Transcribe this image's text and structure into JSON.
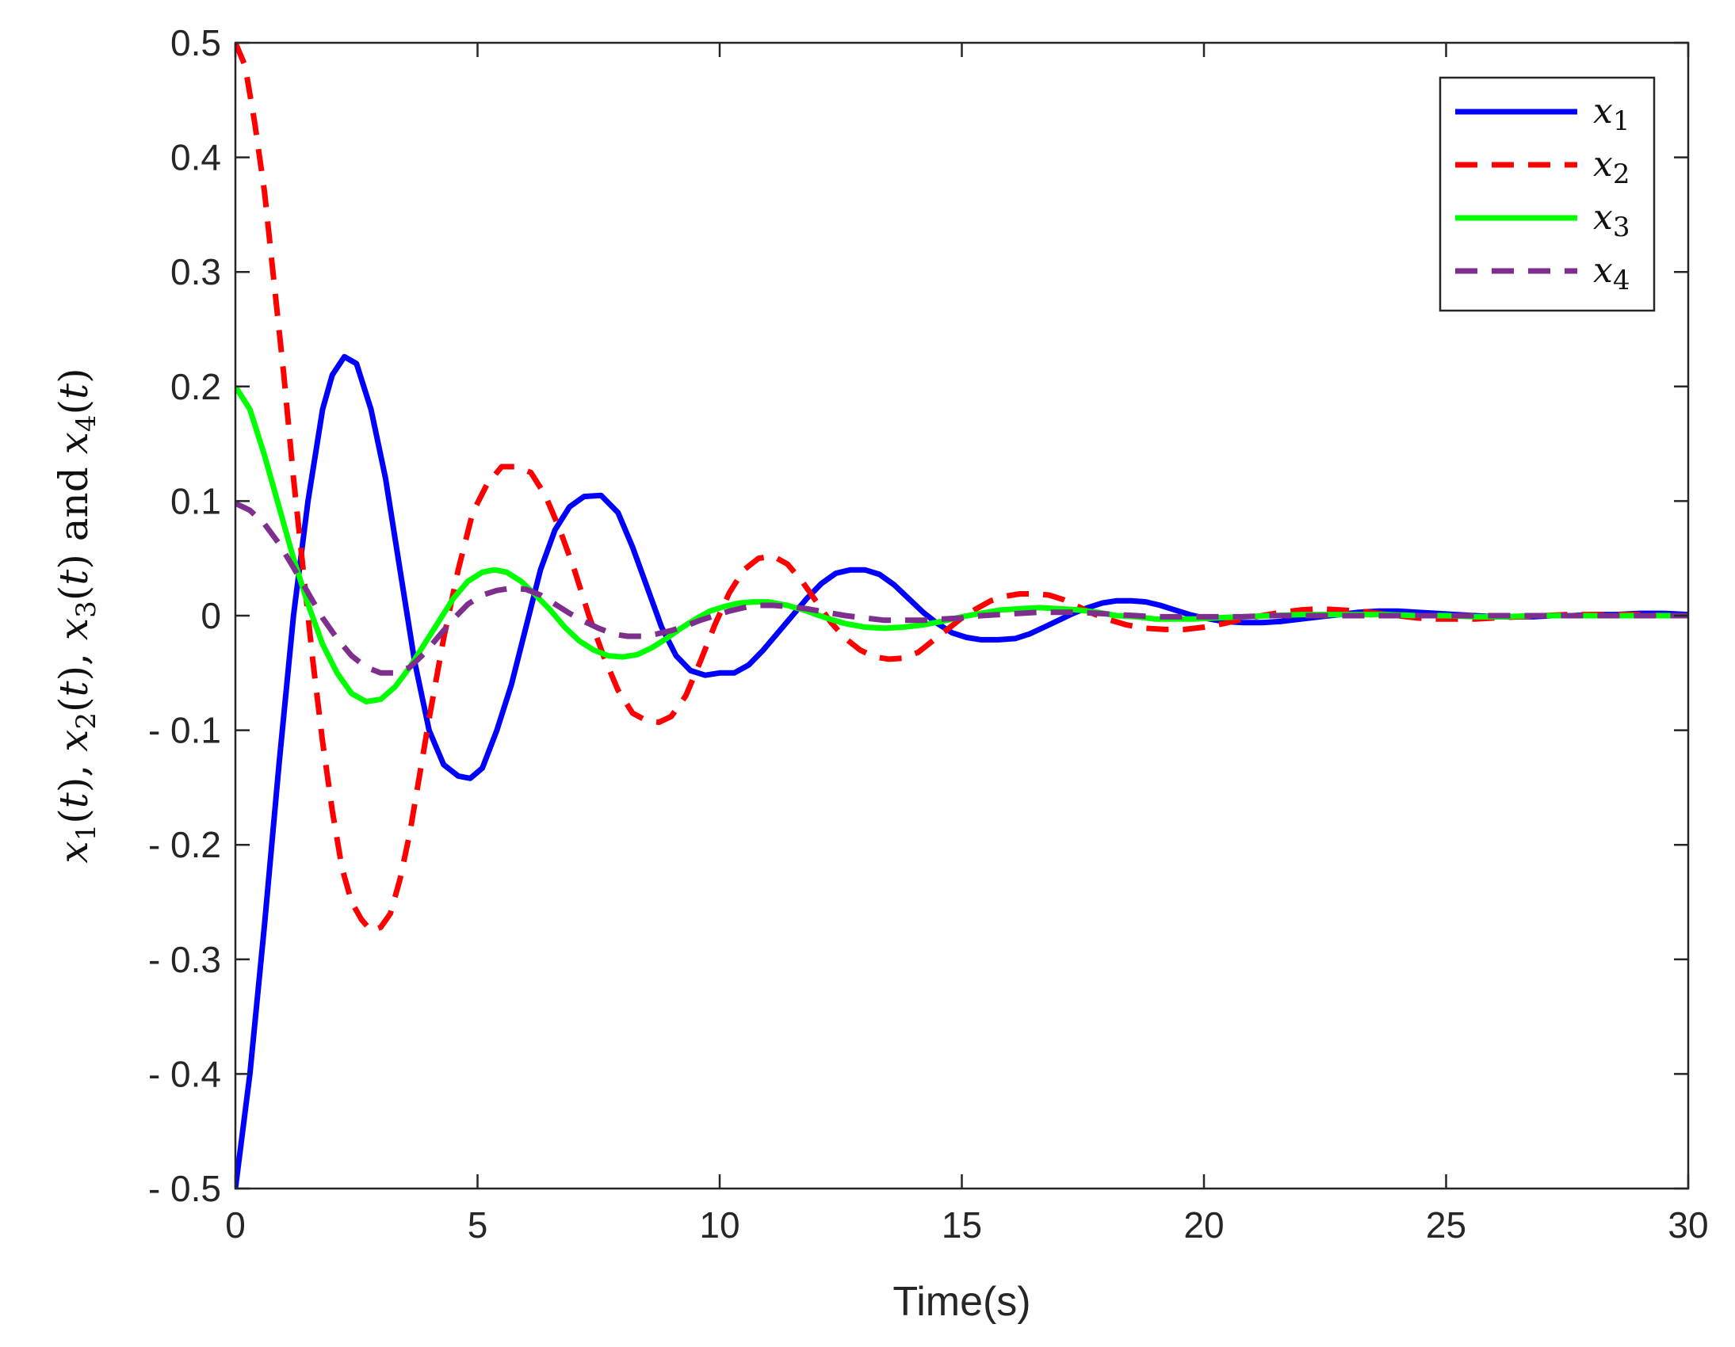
{
  "chart_data": {
    "type": "line",
    "title": "",
    "xlabel": "Time(s)",
    "ylabel": "x1(t), x2(t), x3(t) and x4(t)",
    "ylabel_parts": [
      "x",
      "1",
      "(",
      "t",
      "), ",
      "x",
      "2",
      "(",
      "t",
      "), ",
      "x",
      "3",
      "(",
      "t",
      ") and ",
      "x",
      "4",
      "(",
      "t",
      ")"
    ],
    "xlim": [
      0,
      30
    ],
    "ylim": [
      -0.5,
      0.5
    ],
    "xticks": [
      0,
      5,
      10,
      15,
      20,
      25,
      30
    ],
    "xtick_labels": [
      "0",
      "5",
      "10",
      "15",
      "20",
      "25",
      "30"
    ],
    "yticks": [
      0.5,
      0.4,
      0.3,
      0.2,
      0.1,
      0,
      -0.1,
      -0.2,
      -0.3,
      -0.4,
      -0.5
    ],
    "ytick_labels": [
      "0.5",
      "0.4",
      "0.3",
      "0.2",
      "0.1",
      "0",
      "- 0.1",
      "- 0.2",
      "- 0.3",
      "- 0.4",
      "- 0.5"
    ],
    "grid": false,
    "legend_position": "top-right",
    "series": [
      {
        "name": "x1",
        "label_base": "x",
        "label_sub": "1",
        "color": "#0000ff",
        "dash": "solid",
        "x": [
          0,
          0.3,
          0.6,
          0.9,
          1.2,
          1.5,
          1.8,
          2.0,
          2.25,
          2.5,
          2.8,
          3.1,
          3.4,
          3.7,
          4.0,
          4.3,
          4.6,
          4.85,
          5.1,
          5.4,
          5.7,
          6.0,
          6.3,
          6.6,
          6.9,
          7.2,
          7.55,
          7.9,
          8.2,
          8.5,
          8.8,
          9.1,
          9.4,
          9.7,
          10.0,
          10.3,
          10.6,
          10.9,
          11.2,
          11.5,
          11.8,
          12.1,
          12.4,
          12.7,
          13.0,
          13.3,
          13.6,
          13.9,
          14.2,
          14.5,
          14.8,
          15.1,
          15.4,
          15.75,
          16.1,
          16.4,
          16.7,
          17.0,
          17.3,
          17.6,
          17.9,
          18.2,
          18.5,
          18.8,
          19.1,
          19.4,
          19.7,
          20.0,
          20.4,
          20.8,
          21.2,
          21.6,
          22.0,
          22.4,
          22.8,
          23.2,
          23.6,
          24.0,
          24.4,
          24.8,
          25.2,
          25.6,
          26.0,
          26.4,
          26.8,
          27.2,
          27.6,
          28.0,
          28.5,
          29.0,
          29.5,
          30.0
        ],
        "y": [
          -0.5,
          -0.4,
          -0.27,
          -0.13,
          0.0,
          0.1,
          0.18,
          0.21,
          0.226,
          0.22,
          0.18,
          0.12,
          0.04,
          -0.04,
          -0.1,
          -0.13,
          -0.14,
          -0.142,
          -0.133,
          -0.1,
          -0.06,
          -0.01,
          0.04,
          0.075,
          0.095,
          0.104,
          0.105,
          0.09,
          0.06,
          0.025,
          -0.01,
          -0.035,
          -0.048,
          -0.052,
          -0.05,
          -0.05,
          -0.043,
          -0.03,
          -0.015,
          0.0,
          0.015,
          0.028,
          0.037,
          0.04,
          0.04,
          0.036,
          0.027,
          0.015,
          0.003,
          -0.007,
          -0.015,
          -0.019,
          -0.021,
          -0.021,
          -0.02,
          -0.016,
          -0.01,
          -0.004,
          0.002,
          0.007,
          0.011,
          0.013,
          0.013,
          0.012,
          0.009,
          0.005,
          0.001,
          -0.002,
          -0.005,
          -0.006,
          -0.006,
          -0.005,
          -0.003,
          -0.001,
          0.001,
          0.003,
          0.004,
          0.004,
          0.003,
          0.002,
          0.001,
          0.0,
          -0.001,
          -0.001,
          -0.001,
          0.0,
          0.0,
          0.001,
          0.001,
          0.002,
          0.002,
          0.001
        ]
      },
      {
        "name": "x2",
        "label_base": "x",
        "label_sub": "2",
        "color": "#ff0000",
        "dash": "dashed",
        "x": [
          0,
          0.2,
          0.4,
          0.6,
          0.8,
          1.0,
          1.2,
          1.4,
          1.6,
          1.8,
          2.0,
          2.2,
          2.4,
          2.6,
          2.8,
          3.0,
          3.2,
          3.4,
          3.6,
          3.8,
          4.0,
          4.3,
          4.6,
          4.9,
          5.2,
          5.5,
          5.8,
          6.1,
          6.4,
          6.7,
          7.0,
          7.3,
          7.6,
          7.9,
          8.2,
          8.5,
          8.75,
          9.0,
          9.3,
          9.6,
          9.9,
          10.2,
          10.5,
          10.8,
          11.1,
          11.4,
          11.7,
          12.0,
          12.3,
          12.6,
          12.9,
          13.2,
          13.5,
          13.8,
          14.1,
          14.4,
          14.7,
          15.0,
          15.3,
          15.6,
          15.9,
          16.2,
          16.5,
          16.8,
          17.1,
          17.4,
          17.7,
          18.0,
          18.4,
          18.8,
          19.2,
          19.6,
          20.0,
          20.4,
          20.8,
          21.2,
          21.6,
          22.0,
          22.4,
          22.8,
          23.2,
          23.6,
          24.0,
          24.4,
          24.8,
          25.2,
          25.6,
          26.0,
          26.5,
          27.0,
          27.5,
          28.0,
          28.5,
          29.0,
          29.5,
          30.0
        ],
        "y": [
          0.5,
          0.48,
          0.43,
          0.37,
          0.29,
          0.21,
          0.12,
          0.04,
          -0.04,
          -0.11,
          -0.17,
          -0.22,
          -0.25,
          -0.265,
          -0.275,
          -0.272,
          -0.26,
          -0.23,
          -0.19,
          -0.14,
          -0.09,
          -0.02,
          0.04,
          0.09,
          0.115,
          0.13,
          0.13,
          0.125,
          0.105,
          0.075,
          0.04,
          0.0,
          -0.035,
          -0.065,
          -0.085,
          -0.092,
          -0.093,
          -0.088,
          -0.07,
          -0.04,
          -0.008,
          0.02,
          0.04,
          0.05,
          0.052,
          0.045,
          0.03,
          0.012,
          -0.006,
          -0.02,
          -0.03,
          -0.036,
          -0.038,
          -0.037,
          -0.032,
          -0.022,
          -0.012,
          -0.002,
          0.006,
          0.013,
          0.017,
          0.019,
          0.019,
          0.018,
          0.014,
          0.008,
          0.002,
          -0.003,
          -0.008,
          -0.011,
          -0.012,
          -0.012,
          -0.01,
          -0.007,
          -0.003,
          0.0,
          0.003,
          0.005,
          0.006,
          0.005,
          0.004,
          0.002,
          0.0,
          -0.002,
          -0.003,
          -0.003,
          -0.003,
          -0.002,
          -0.001,
          0.0,
          0.001,
          0.001,
          0.001,
          0.001,
          0.0,
          0.0
        ]
      },
      {
        "name": "x3",
        "label_base": "x",
        "label_sub": "3",
        "color": "#00ff00",
        "dash": "solid",
        "x": [
          0,
          0.3,
          0.6,
          0.9,
          1.2,
          1.5,
          1.8,
          2.1,
          2.4,
          2.7,
          3.0,
          3.3,
          3.6,
          3.9,
          4.2,
          4.5,
          4.8,
          5.1,
          5.35,
          5.6,
          5.9,
          6.2,
          6.5,
          6.8,
          7.1,
          7.4,
          7.7,
          8.0,
          8.3,
          8.6,
          8.9,
          9.2,
          9.5,
          9.8,
          10.1,
          10.4,
          10.7,
          11.0,
          11.4,
          11.8,
          12.2,
          12.6,
          13.0,
          13.4,
          13.8,
          14.2,
          14.6,
          15.0,
          15.4,
          15.8,
          16.2,
          16.6,
          17.0,
          17.4,
          17.8,
          18.2,
          18.6,
          19.0,
          19.4,
          19.8,
          20.2,
          20.8,
          21.4,
          22.0,
          22.6,
          23.2,
          23.8,
          24.4,
          25.0,
          25.6,
          26.2,
          26.8,
          27.4,
          28.0,
          29.0,
          30.0
        ],
        "y": [
          0.2,
          0.18,
          0.14,
          0.095,
          0.05,
          0.01,
          -0.025,
          -0.05,
          -0.068,
          -0.075,
          -0.073,
          -0.062,
          -0.045,
          -0.025,
          -0.005,
          0.015,
          0.03,
          0.038,
          0.04,
          0.038,
          0.03,
          0.018,
          0.005,
          -0.01,
          -0.022,
          -0.03,
          -0.035,
          -0.036,
          -0.034,
          -0.028,
          -0.02,
          -0.011,
          -0.003,
          0.004,
          0.008,
          0.011,
          0.012,
          0.012,
          0.009,
          0.004,
          -0.002,
          -0.007,
          -0.01,
          -0.011,
          -0.01,
          -0.008,
          -0.005,
          -0.001,
          0.002,
          0.005,
          0.006,
          0.007,
          0.006,
          0.005,
          0.003,
          0.0,
          -0.001,
          -0.003,
          -0.003,
          -0.003,
          -0.002,
          -0.001,
          0.0,
          0.001,
          0.001,
          0.001,
          0.001,
          0.0,
          0.0,
          -0.001,
          -0.001,
          0.0,
          0.0,
          0.0,
          0.0,
          0.0
        ]
      },
      {
        "name": "x4",
        "label_base": "x",
        "label_sub": "4",
        "color": "#7e2f8e",
        "dash": "dashed",
        "x": [
          0,
          0.3,
          0.6,
          0.9,
          1.2,
          1.5,
          1.8,
          2.1,
          2.4,
          2.7,
          3.0,
          3.3,
          3.6,
          3.9,
          4.2,
          4.5,
          4.8,
          5.1,
          5.4,
          5.7,
          6.0,
          6.3,
          6.6,
          6.9,
          7.2,
          7.5,
          7.8,
          8.1,
          8.4,
          8.7,
          9.0,
          9.3,
          9.6,
          9.9,
          10.2,
          10.5,
          10.8,
          11.1,
          11.4,
          11.8,
          12.2,
          12.6,
          13.0,
          13.4,
          13.8,
          14.2,
          14.6,
          15.0,
          15.4,
          15.8,
          16.2,
          16.6,
          17.0,
          17.4,
          17.8,
          18.2,
          18.6,
          19.0,
          19.6,
          20.2,
          20.8,
          21.4,
          22.0,
          22.6,
          23.2,
          23.8,
          24.4,
          25.0,
          25.6,
          26.2,
          26.8,
          27.4,
          28.0,
          29.0,
          30.0
        ],
        "y": [
          0.098,
          0.092,
          0.08,
          0.063,
          0.042,
          0.02,
          -0.002,
          -0.02,
          -0.035,
          -0.045,
          -0.05,
          -0.05,
          -0.045,
          -0.033,
          -0.018,
          -0.003,
          0.01,
          0.018,
          0.022,
          0.024,
          0.023,
          0.018,
          0.01,
          0.002,
          -0.005,
          -0.011,
          -0.016,
          -0.018,
          -0.018,
          -0.016,
          -0.013,
          -0.009,
          -0.004,
          0.0,
          0.004,
          0.007,
          0.009,
          0.009,
          0.008,
          0.006,
          0.003,
          0.0,
          -0.002,
          -0.004,
          -0.004,
          -0.004,
          -0.003,
          -0.002,
          0.0,
          0.001,
          0.002,
          0.003,
          0.003,
          0.003,
          0.002,
          0.001,
          0.0,
          -0.001,
          -0.001,
          -0.001,
          -0.001,
          0.0,
          0.0,
          0.0,
          0.0,
          0.0,
          0.0,
          0.0,
          0.0,
          0.0,
          0.0,
          0.0,
          0.0,
          0.0,
          0.0
        ]
      }
    ]
  }
}
